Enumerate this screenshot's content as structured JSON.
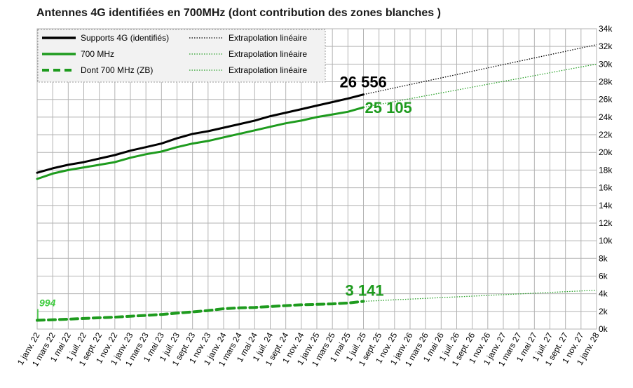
{
  "chart_data": {
    "type": "line",
    "title": "Antennes 4G identifiées en 700MHz (dont contribution des zones blanches )",
    "x_categories": [
      "1 janv. 22",
      "1 mars 22",
      "1 mai 22",
      "1 juil. 22",
      "1 sept. 22",
      "1 nov. 22",
      "1 janv. 23",
      "1 mars 23",
      "1 mai 23",
      "1 juil. 23",
      "1 sept. 23",
      "1 nov. 23",
      "1 janv. 24",
      "1 mars 24",
      "1 mai 24",
      "1 juil. 24",
      "1 sept. 24",
      "1 nov. 24",
      "1 janv. 25",
      "1 mars 25",
      "1 mai 25",
      "1 juil. 25",
      "1 sept. 25",
      "1 nov. 25",
      "1 janv. 26",
      "1 mars 26",
      "1 mai 26",
      "1 juil. 26",
      "1 sept. 26",
      "1 nov. 26",
      "1 janv. 27",
      "1 mars 27",
      "1 mai 27",
      "1 juil. 27",
      "1 sept. 27",
      "1 nov. 27",
      "1 janv. 28"
    ],
    "y_ticks": [
      "0k",
      "2k",
      "4k",
      "6k",
      "8k",
      "10k",
      "12k",
      "14k",
      "16k",
      "18k",
      "20k",
      "22k",
      "24k",
      "26k",
      "28k",
      "30k",
      "32k",
      "34k"
    ],
    "ylim": [
      0,
      34000
    ],
    "grid": true,
    "legend_position": "top-left",
    "series": [
      {
        "name": "Supports 4G (identifiés)",
        "color": "#000000",
        "style": "solid-thick",
        "values": [
          17700,
          18200,
          18600,
          18900,
          19300,
          19700,
          20200,
          20600,
          21000,
          21600,
          22100,
          22400,
          22800,
          23200,
          23600,
          24100,
          24500,
          24900,
          25300,
          25700,
          26100,
          26556
        ]
      },
      {
        "name": "700 MHz",
        "color": "#1e9b1e",
        "style": "solid-thick",
        "values": [
          17000,
          17600,
          18000,
          18300,
          18600,
          18900,
          19400,
          19800,
          20100,
          20600,
          21000,
          21300,
          21700,
          22100,
          22500,
          22900,
          23300,
          23600,
          24000,
          24300,
          24600,
          25105
        ]
      },
      {
        "name": "Dont 700 MHz (ZB)",
        "color": "#1e9b1e",
        "style": "dashed-thick",
        "values": [
          994,
          1050,
          1120,
          1200,
          1280,
          1350,
          1450,
          1550,
          1650,
          1800,
          1950,
          2100,
          2300,
          2400,
          2450,
          2550,
          2650,
          2750,
          2800,
          2850,
          2950,
          3141
        ]
      }
    ],
    "trendlines": [
      {
        "name": "Extrapolation linéaire",
        "color": "#000000",
        "start_index": 21,
        "start": 26556,
        "end_index": 36,
        "end": 32200
      },
      {
        "name": "Extrapolation linéaire",
        "color": "#2aa12a",
        "start_index": 21,
        "start": 25105,
        "end_index": 36,
        "end": 30000
      },
      {
        "name": "Extrapolation linéaire",
        "color": "#2aa12a",
        "start_index": 21,
        "start": 3141,
        "end_index": 36,
        "end": 4400
      }
    ],
    "annotations": [
      {
        "text": "26 556",
        "series": 0,
        "color": "#000000"
      },
      {
        "text": "25 105",
        "series": 1,
        "color": "#1e9b1e"
      },
      {
        "text": "3 141",
        "series": 2,
        "color": "#1e9b1e"
      },
      {
        "text": "994",
        "series": 2,
        "color": "#3ccc3c",
        "at": "start"
      }
    ]
  }
}
